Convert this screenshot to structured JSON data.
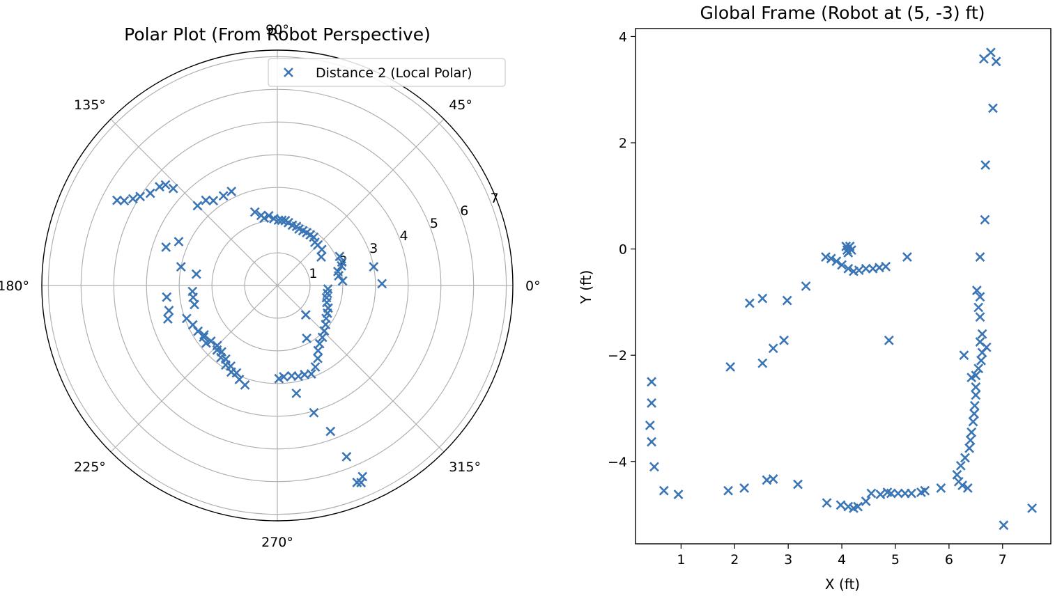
{
  "figure": {
    "marker_color": "#3a75b5",
    "marker_symbol": "x"
  },
  "chart_data": [
    {
      "type": "scatter",
      "projection": "polar",
      "title": "Polar Plot (From Robot Perspective)",
      "theta_unit": "degrees",
      "theta_tick_labels": [
        "0°",
        "45°",
        "90°",
        "135°",
        "180°",
        "225°",
        "270°",
        "315°"
      ],
      "theta_ticks": [
        0,
        45,
        90,
        135,
        180,
        225,
        270,
        315
      ],
      "r_ticks": [
        1,
        2,
        3,
        4,
        5,
        6,
        7
      ],
      "r_tick_labels": [
        "1",
        "2",
        "3",
        "4",
        "5",
        "6",
        "7"
      ],
      "rlim": [
        0,
        7.2
      ],
      "grid": true,
      "legend_position": "upper right",
      "series": [
        {
          "name": "Distance 2 (Local Polar)",
          "color": "#3a75b5",
          "points": [
            [
              97,
              2.15
            ],
            [
              93,
              2.05
            ],
            [
              89,
              2.0
            ],
            [
              86,
              2.0
            ],
            [
              83,
              2.0
            ],
            [
              80,
              1.95
            ],
            [
              76,
              1.9
            ],
            [
              72,
              1.9
            ],
            [
              69,
              1.85
            ],
            [
              65,
              1.85
            ],
            [
              61,
              1.85
            ],
            [
              57,
              1.85
            ],
            [
              53,
              1.85
            ],
            [
              49,
              1.75
            ],
            [
              45,
              1.75
            ],
            [
              39,
              1.75
            ],
            [
              33,
              1.6
            ],
            [
              25,
              2.1
            ],
            [
              20,
              2.1
            ],
            [
              17,
              2.05
            ],
            [
              13,
              1.9
            ],
            [
              9,
              1.9
            ],
            [
              4,
              2.0
            ],
            [
              11,
              3.0
            ],
            [
              1,
              3.2
            ],
            [
              -4,
              1.55
            ],
            [
              -9,
              1.55
            ],
            [
              -14,
              1.55
            ],
            [
              -19,
              1.6
            ],
            [
              -24,
              1.7
            ],
            [
              -29,
              1.75
            ],
            [
              -34,
              1.8
            ],
            [
              -39,
              1.9
            ],
            [
              -44,
              2.0
            ],
            [
              -49,
              2.1
            ],
            [
              -54,
              2.2
            ],
            [
              -58,
              2.35
            ],
            [
              -61,
              2.55
            ],
            [
              -65,
              2.75
            ],
            [
              -69,
              2.9
            ],
            [
              -73,
              2.85
            ],
            [
              -77,
              2.85
            ],
            [
              -81,
              2.8
            ],
            [
              -86,
              2.8
            ],
            [
              -89,
              2.85
            ],
            [
              -61,
              1.85
            ],
            [
              -46,
              1.25
            ],
            [
              -80,
              3.35
            ],
            [
              -74,
              4.05
            ],
            [
              -70,
              4.75
            ],
            [
              -68,
              5.65
            ],
            [
              -66,
              6.4
            ],
            [
              -67,
              6.55
            ],
            [
              -68,
              6.5
            ],
            [
              -115,
              2.95
            ],
            [
              -120,
              2.85
            ],
            [
              -125,
              2.75
            ],
            [
              -130,
              2.65
            ],
            [
              -135,
              2.6
            ],
            [
              -140,
              2.65
            ],
            [
              -145,
              2.75
            ],
            [
              -150,
              2.8
            ],
            [
              -155,
              2.85
            ],
            [
              -160,
              2.95
            ],
            [
              -133,
              2.7
            ],
            [
              -128,
              2.8
            ],
            [
              -123,
              2.9
            ],
            [
              -118,
              3.0
            ],
            [
              -112,
              3.1
            ],
            [
              -108,
              3.2
            ],
            [
              -141,
              2.8
            ],
            [
              -146,
              2.7
            ],
            [
              -167,
              2.6
            ],
            [
              -172,
              2.6
            ],
            [
              -163,
              3.5
            ],
            [
              -167,
              3.4
            ],
            [
              -174,
              3.4
            ],
            [
              -176,
              2.6
            ],
            [
              169,
              3.0
            ],
            [
              172,
              2.5
            ],
            [
              156,
              3.3
            ],
            [
              161,
              3.6
            ],
            [
              135,
              3.45
            ],
            [
              130,
              3.4
            ],
            [
              127,
              3.25
            ],
            [
              121,
              3.2
            ],
            [
              116,
              3.2
            ],
            [
              107,
              2.35
            ],
            [
              103,
              2.2
            ],
            [
              101,
              2.1
            ],
            [
              152,
              5.55
            ],
            [
              151,
              5.35
            ],
            [
              149,
              5.15
            ],
            [
              147,
              5.0
            ],
            [
              144,
              4.8
            ],
            [
              140,
              4.7
            ],
            [
              138,
              4.6
            ],
            [
              137,
              4.35
            ]
          ]
        }
      ]
    },
    {
      "type": "scatter",
      "title": "Global Frame (Robot at (5, -3) ft)",
      "xlabel": "X (ft)",
      "ylabel": "Y (ft)",
      "xlim": [
        0.15,
        7.9
      ],
      "ylim": [
        -5.55,
        4.15
      ],
      "xticks": [
        1,
        2,
        3,
        4,
        5,
        6,
        7
      ],
      "xtick_labels": [
        "1",
        "2",
        "3",
        "4",
        "5",
        "6",
        "7"
      ],
      "yticks": [
        -4,
        -2,
        0,
        2,
        4
      ],
      "ytick_labels": [
        "−4",
        "−2",
        "0",
        "2",
        "4"
      ],
      "grid": false,
      "series": [
        {
          "color": "#3a75b5",
          "points": [
            [
              6.78,
              3.7
            ],
            [
              6.65,
              3.58
            ],
            [
              6.88,
              3.53
            ],
            [
              6.82,
              2.65
            ],
            [
              6.68,
              1.58
            ],
            [
              6.67,
              0.55
            ],
            [
              6.58,
              -0.15
            ],
            [
              6.52,
              -0.78
            ],
            [
              6.58,
              -0.9
            ],
            [
              6.55,
              -1.1
            ],
            [
              6.58,
              -1.28
            ],
            [
              6.62,
              -1.6
            ],
            [
              6.58,
              -1.75
            ],
            [
              6.7,
              -1.85
            ],
            [
              6.62,
              -1.95
            ],
            [
              6.6,
              -2.1
            ],
            [
              6.55,
              -2.25
            ],
            [
              6.5,
              -2.38
            ],
            [
              6.42,
              -2.42
            ],
            [
              6.5,
              -2.6
            ],
            [
              6.5,
              -2.75
            ],
            [
              6.48,
              -2.95
            ],
            [
              6.47,
              -3.1
            ],
            [
              6.45,
              -3.25
            ],
            [
              6.42,
              -3.45
            ],
            [
              6.4,
              -3.6
            ],
            [
              6.38,
              -3.75
            ],
            [
              6.3,
              -3.93
            ],
            [
              6.22,
              -4.08
            ],
            [
              6.15,
              -4.25
            ],
            [
              6.18,
              -4.38
            ],
            [
              6.25,
              -4.45
            ],
            [
              6.35,
              -4.5
            ],
            [
              6.28,
              -2.0
            ],
            [
              5.85,
              -4.5
            ],
            [
              5.55,
              -4.55
            ],
            [
              5.48,
              -4.58
            ],
            [
              5.3,
              -4.6
            ],
            [
              5.18,
              -4.6
            ],
            [
              5.05,
              -4.6
            ],
            [
              4.92,
              -4.6
            ],
            [
              4.85,
              -4.58
            ],
            [
              4.72,
              -4.62
            ],
            [
              4.55,
              -4.6
            ],
            [
              4.45,
              -4.75
            ],
            [
              4.3,
              -4.85
            ],
            [
              4.22,
              -4.88
            ],
            [
              4.12,
              -4.85
            ],
            [
              3.98,
              -4.82
            ],
            [
              3.72,
              -4.78
            ],
            [
              0.45,
              -2.5
            ],
            [
              0.45,
              -2.9
            ],
            [
              0.42,
              -3.32
            ],
            [
              0.45,
              -3.63
            ],
            [
              0.5,
              -4.1
            ],
            [
              0.68,
              -4.55
            ],
            [
              0.95,
              -4.62
            ],
            [
              1.88,
              -4.55
            ],
            [
              2.18,
              -4.5
            ],
            [
              2.6,
              -4.35
            ],
            [
              2.72,
              -4.33
            ],
            [
              3.18,
              -4.43
            ],
            [
              1.92,
              -2.22
            ],
            [
              2.52,
              -2.15
            ],
            [
              2.72,
              -1.87
            ],
            [
              2.92,
              -1.72
            ],
            [
              4.88,
              -1.72
            ],
            [
              2.28,
              -1.02
            ],
            [
              2.52,
              -0.93
            ],
            [
              2.98,
              -0.97
            ],
            [
              3.33,
              -0.7
            ],
            [
              3.7,
              -0.15
            ],
            [
              3.8,
              -0.18
            ],
            [
              3.9,
              -0.23
            ],
            [
              4.0,
              -0.3
            ],
            [
              4.12,
              -0.37
            ],
            [
              4.22,
              -0.42
            ],
            [
              4.32,
              -0.4
            ],
            [
              4.45,
              -0.37
            ],
            [
              4.58,
              -0.37
            ],
            [
              4.7,
              -0.35
            ],
            [
              4.82,
              -0.33
            ],
            [
              5.22,
              -0.15
            ],
            [
              4.08,
              0.05
            ],
            [
              4.15,
              0.05
            ],
            [
              4.1,
              -0.02
            ],
            [
              4.18,
              -0.02
            ],
            [
              4.12,
              -0.07
            ],
            [
              7.02,
              -5.2
            ],
            [
              7.55,
              -4.88
            ]
          ]
        }
      ]
    }
  ]
}
